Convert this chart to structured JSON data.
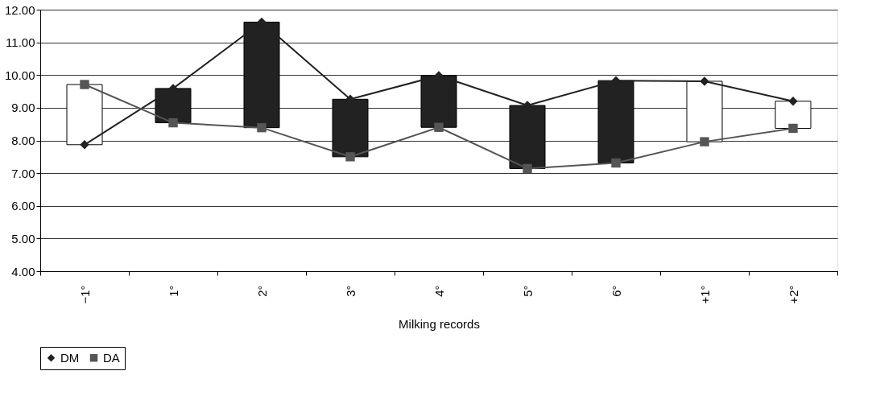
{
  "chart_data": {
    "type": "line",
    "xlabel": "Milking records",
    "categories": [
      "−1°",
      "1°",
      "2°",
      "3°",
      "4°",
      "5°",
      "6°",
      "+1°",
      "+2°"
    ],
    "series": [
      {
        "type": "bar",
        "base": [
          7.87,
          8.54,
          8.39,
          7.5,
          8.4,
          7.14,
          7.31,
          7.96,
          8.37
        ],
        "values": [
          1.84,
          1.05,
          3.23,
          1.76,
          1.58,
          1.93,
          2.52,
          1.85,
          0.83
        ],
        "colors": [
          "#ffffff",
          "#222222",
          "#222222",
          "#222222",
          "#222222",
          "#222222",
          "#222222",
          "#ffffff",
          "#ffffff"
        ]
      },
      {
        "name": "DM",
        "color": "#222222",
        "marker": "diamond",
        "values": [
          7.87,
          9.59,
          11.62,
          9.26,
          9.98,
          9.07,
          9.83,
          9.81,
          9.2
        ]
      },
      {
        "name": "DA",
        "color": "#555555",
        "marker": "square",
        "values": [
          9.71,
          8.54,
          8.39,
          7.5,
          8.4,
          7.14,
          7.31,
          7.96,
          8.37
        ]
      }
    ],
    "ylim": [
      4,
      12
    ],
    "yticks": [
      {
        "value": 4,
        "label": "4.00"
      },
      {
        "value": 5,
        "label": "5.00"
      },
      {
        "value": 6,
        "label": "6.00"
      },
      {
        "value": 7,
        "label": "7.00"
      },
      {
        "value": 8,
        "label": "8.00"
      },
      {
        "value": 9,
        "label": "9.00"
      },
      {
        "value": 10,
        "label": "10.00"
      },
      {
        "value": 11,
        "label": "11.00"
      },
      {
        "value": 12,
        "label": "12.00"
      }
    ],
    "grid": "y",
    "legend": "bottom"
  }
}
